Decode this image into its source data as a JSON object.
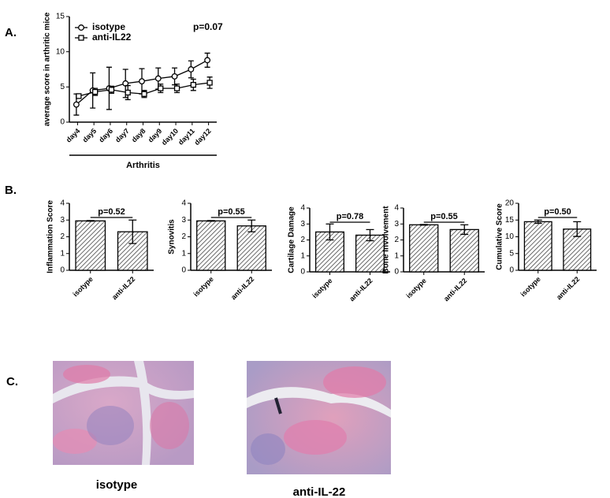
{
  "panel_labels": [
    "A.",
    "B.",
    "C."
  ],
  "chart_data": [
    {
      "type": "line",
      "ylabel": "average score in arthritic mice",
      "xlabel": "Arthritis",
      "annotation": "p=0.07",
      "categories": [
        "day4",
        "day5",
        "day6",
        "day7",
        "day8",
        "day9",
        "day10",
        "day11",
        "day12"
      ],
      "series": [
        {
          "name": "isotype",
          "marker": "circle",
          "color": "#000000",
          "values": [
            2.5,
            4.5,
            4.8,
            5.5,
            5.8,
            6.2,
            6.5,
            7.5,
            8.8
          ],
          "errors": [
            1.5,
            2.5,
            3,
            2,
            1.8,
            1.5,
            1.2,
            1.2,
            1
          ]
        },
        {
          "name": "anti-IL22",
          "marker": "square",
          "color": "#000000",
          "values": [
            3.7,
            4.3,
            4.6,
            4.2,
            4.0,
            4.8,
            4.8,
            5.3,
            5.6
          ],
          "errors": [
            0.3,
            0.5,
            0.5,
            1,
            0.5,
            0.6,
            0.6,
            0.8,
            0.8
          ]
        }
      ],
      "ylim": [
        0,
        15
      ],
      "yticks": [
        0,
        5,
        10,
        15
      ]
    },
    {
      "type": "bar",
      "ylabel": "Inflammation Score",
      "annotation": "p=0.52",
      "categories": [
        "isotype",
        "anti-IL22"
      ],
      "values": [
        2.95,
        2.3
      ],
      "errors": [
        0.02,
        0.7
      ],
      "ylim": [
        0,
        4
      ],
      "yticks": [
        0,
        1,
        2,
        3,
        4
      ]
    },
    {
      "type": "bar",
      "ylabel": "Synovitis",
      "annotation": "p=0.55",
      "categories": [
        "isotype",
        "anti-IL22"
      ],
      "values": [
        2.95,
        2.65
      ],
      "errors": [
        0.02,
        0.35
      ],
      "ylim": [
        0,
        4
      ],
      "yticks": [
        0,
        1,
        2,
        3,
        4
      ]
    },
    {
      "type": "bar",
      "ylabel": "Cartilage Damage",
      "annotation": "p=0.78",
      "categories": [
        "isotype",
        "anti-IL22"
      ],
      "values": [
        2.5,
        2.3
      ],
      "errors": [
        0.5,
        0.35
      ],
      "ylim": [
        0,
        4
      ],
      "yticks": [
        0,
        1,
        2,
        3,
        4
      ]
    },
    {
      "type": "bar",
      "ylabel": "Bone Involvement",
      "annotation": "p=0.55",
      "categories": [
        "isotype",
        "anti-IL22"
      ],
      "values": [
        2.95,
        2.65
      ],
      "errors": [
        0.02,
        0.3
      ],
      "ylim": [
        0,
        4
      ],
      "yticks": [
        0,
        1,
        2,
        3,
        4
      ]
    },
    {
      "type": "bar",
      "ylabel": "Cumulative Score",
      "annotation": "p=0.50",
      "categories": [
        "isotype",
        "anti-IL22"
      ],
      "values": [
        14.5,
        12.3
      ],
      "errors": [
        0.5,
        2.2
      ],
      "ylim": [
        0,
        20
      ],
      "yticks": [
        0,
        5,
        10,
        15,
        20
      ]
    }
  ],
  "images": [
    {
      "caption": "isotype"
    },
    {
      "caption": "anti-IL-22"
    }
  ]
}
